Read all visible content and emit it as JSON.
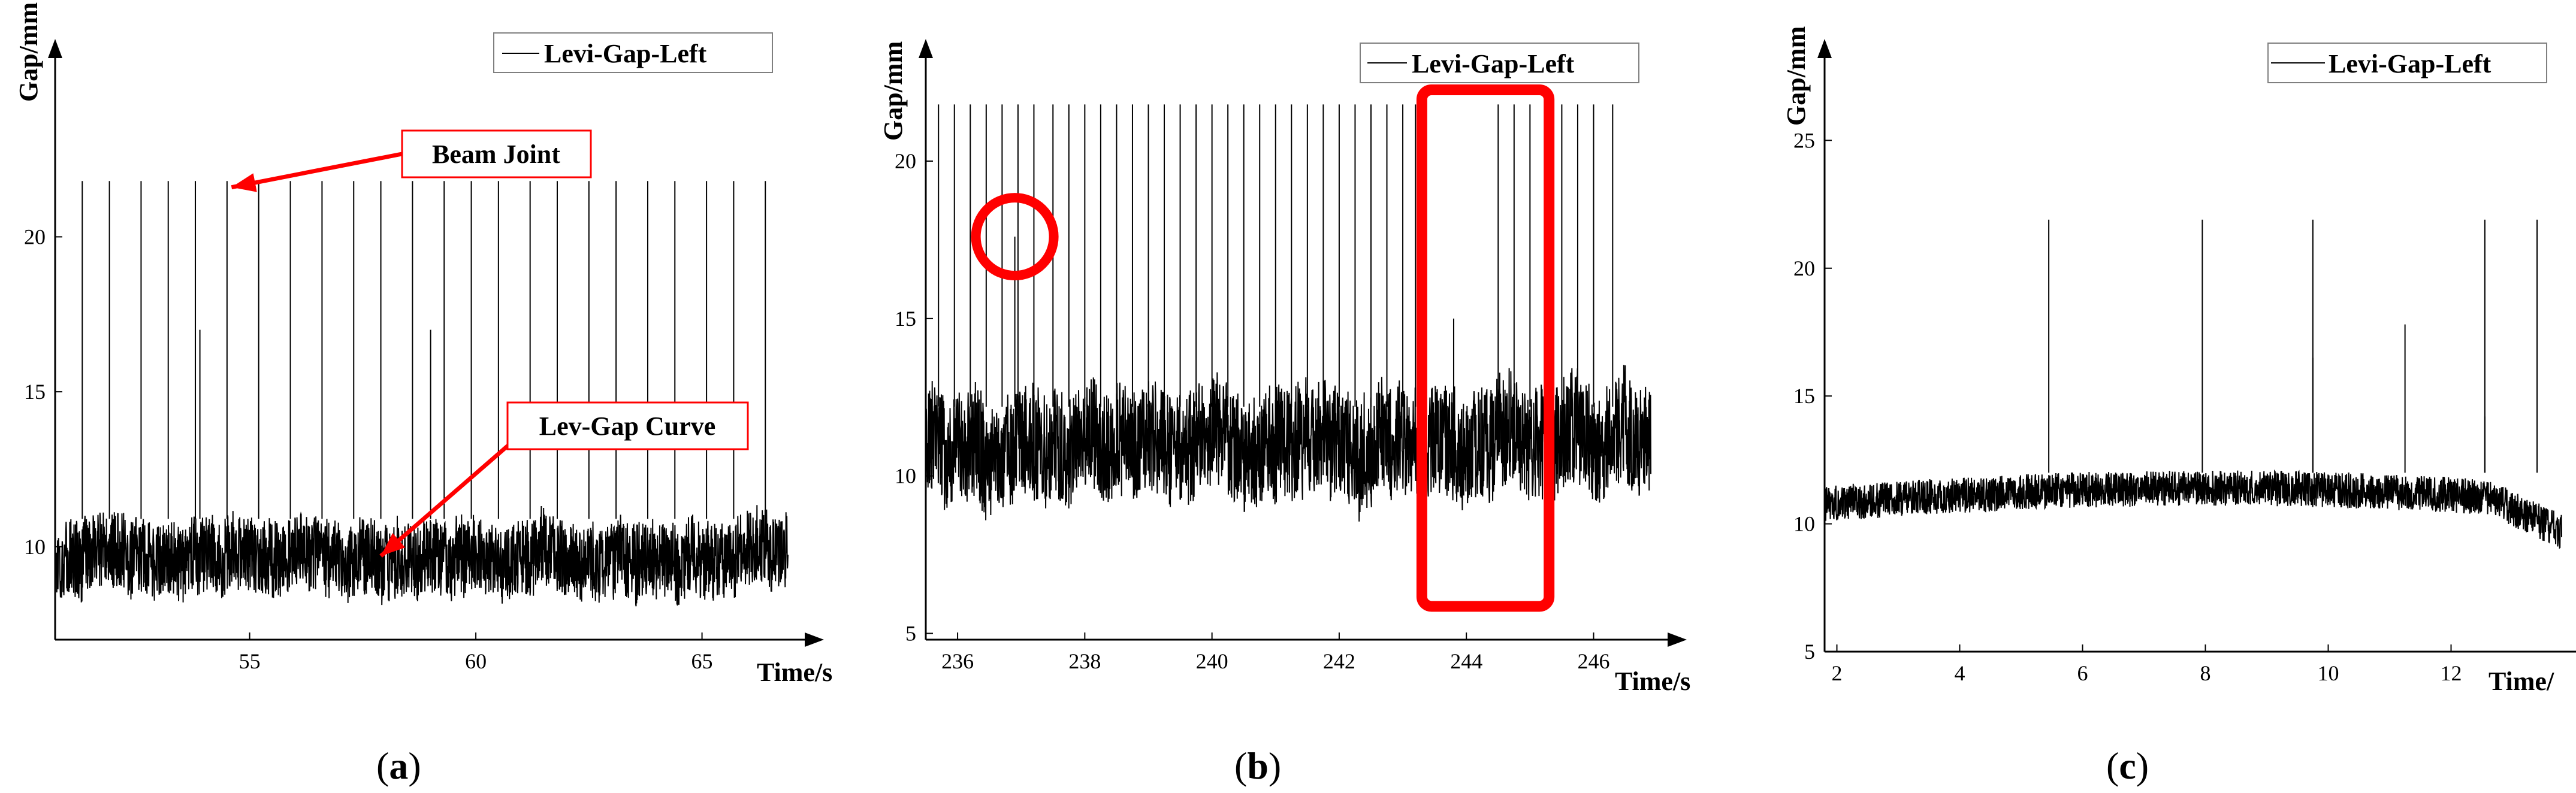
{
  "colors": {
    "series": "#000000",
    "annotation": "#ff0000",
    "axis": "#000000",
    "legend_border": "#7f7f7f"
  },
  "chart_data": [
    {
      "panel": "a",
      "type": "line",
      "caption": "a",
      "xlabel": "Time/s",
      "ylabel": "Gap/mm",
      "xlim": [
        50.7,
        66.9
      ],
      "ylim": [
        7.0,
        26.0
      ],
      "xticks": [
        55,
        60,
        65
      ],
      "yticks": [
        10,
        15,
        20
      ],
      "series": [
        {
          "name": "Levi-Gap-Left",
          "baseline_mean": 9.7,
          "noise_band": [
            8.3,
            11.1
          ],
          "spike_peak": 21.8,
          "spike_times": [
            51.3,
            51.9,
            52.6,
            53.2,
            53.8,
            54.5,
            55.2,
            55.9,
            56.6,
            57.3,
            57.9,
            58.6,
            59.3,
            59.9,
            60.5,
            61.2,
            61.8,
            62.5,
            63.1,
            63.8,
            64.4,
            65.1,
            65.7,
            66.4
          ],
          "short_spikes": [
            [
              53.9,
              17.0
            ],
            [
              59.0,
              17.0
            ]
          ]
        }
      ],
      "legend": {
        "entries": [
          "Levi-Gap-Left"
        ],
        "position": "top-right"
      },
      "annotations": [
        {
          "text": "Beam Joint",
          "target": [
            54.6,
            21.6
          ]
        },
        {
          "text": "Lev-Gap Curve",
          "target": [
            57.9,
            9.7
          ]
        }
      ]
    },
    {
      "panel": "b",
      "type": "line",
      "caption": "b",
      "xlabel": "Time/s",
      "ylabel": "Gap/mm",
      "xlim": [
        235.5,
        246.9
      ],
      "ylim": [
        4.8,
        23.5
      ],
      "xticks": [
        236,
        238,
        240,
        242,
        244,
        246
      ],
      "yticks": [
        5,
        10,
        15,
        20
      ],
      "series": [
        {
          "name": "Levi-Gap-Left",
          "baseline_mean": 11.0,
          "noise_band": [
            9.0,
            13.0
          ],
          "spike_peak": 21.8,
          "spike_times": [
            235.7,
            235.95,
            236.2,
            236.45,
            236.7,
            236.95,
            237.2,
            237.5,
            237.75,
            238.0,
            238.25,
            238.5,
            238.75,
            239.0,
            239.25,
            239.5,
            239.75,
            240.0,
            240.25,
            240.5,
            240.75,
            241.0,
            241.25,
            241.5,
            241.75,
            242.0,
            242.25,
            242.5,
            242.75,
            243.0,
            243.2,
            244.5,
            244.75,
            245.0,
            245.25,
            245.5,
            245.75,
            246.0,
            246.3
          ],
          "short_spikes": [
            [
              236.9,
              17.6
            ],
            [
              243.8,
              15.0
            ]
          ]
        }
      ],
      "legend": {
        "entries": [
          "Levi-Gap-Left"
        ],
        "position": "top-right"
      },
      "annotations": [
        {
          "shape": "circle",
          "center": [
            236.9,
            17.6
          ]
        },
        {
          "shape": "rectangle",
          "x_range": [
            243.3,
            245.3
          ],
          "y_range": [
            7.0,
            23.5
          ]
        }
      ]
    },
    {
      "panel": "c",
      "type": "line",
      "caption": "c",
      "xlabel": "Time/",
      "ylabel": "Gap/mm",
      "xlim": [
        1.8,
        13.8
      ],
      "ylim": [
        5.0,
        28.5
      ],
      "xticks": [
        2,
        4,
        6,
        8,
        10,
        12
      ],
      "yticks": [
        5,
        10,
        15,
        20,
        25
      ],
      "series": [
        {
          "name": "Levi-Gap-Left",
          "baseline_mean": 10.8,
          "noise_band": [
            9.8,
            11.8
          ],
          "spike_peak": 21.9,
          "spike_times": [
            5.45,
            7.95,
            9.75,
            12.55,
            13.4
          ],
          "short_spikes": [
            [
              9.75,
              16.5
            ],
            [
              11.25,
              17.8
            ],
            [
              12.55,
              14.2
            ]
          ]
        }
      ],
      "legend": {
        "entries": [
          "Levi-Gap-Left"
        ],
        "position": "top-right"
      },
      "annotations": []
    }
  ]
}
